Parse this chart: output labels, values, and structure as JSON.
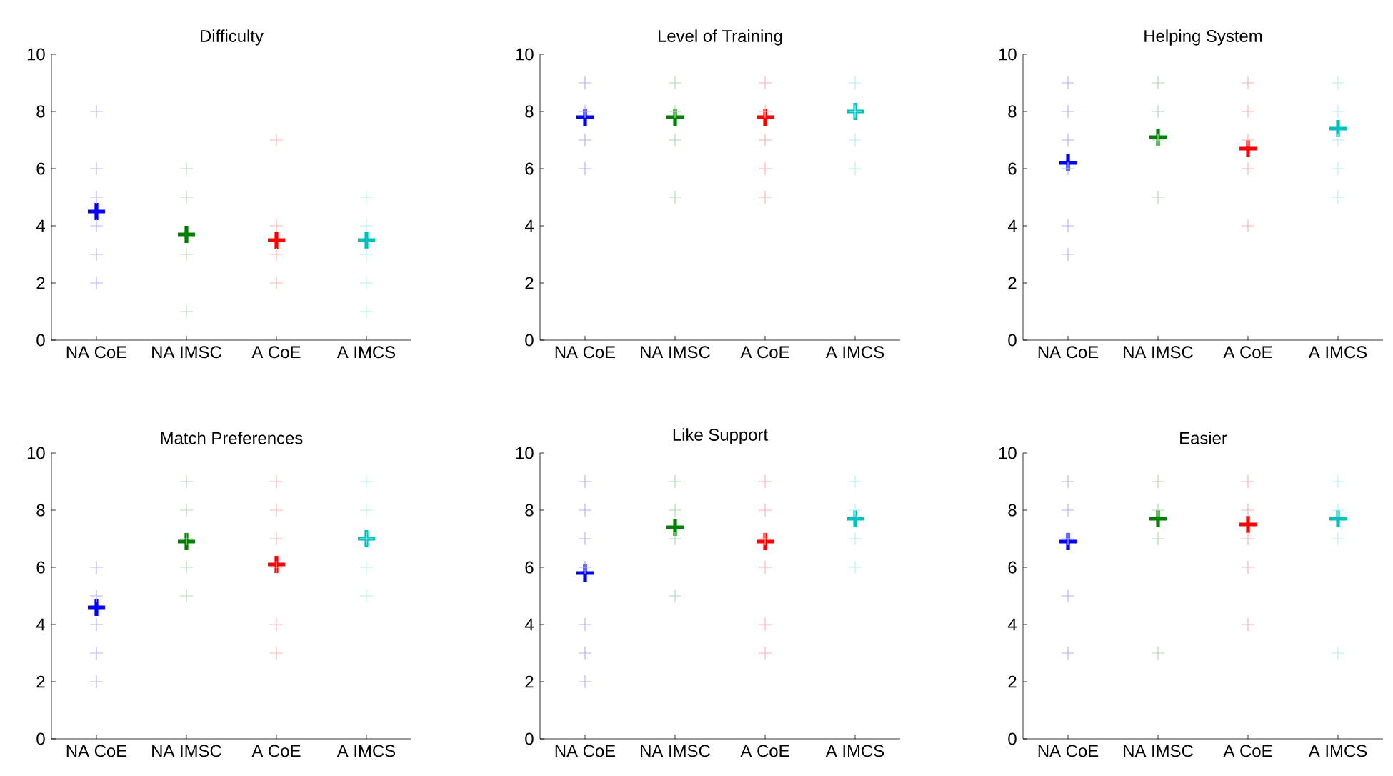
{
  "chart_data": [
    {
      "type": "scatter",
      "title": "Difficulty",
      "categories": [
        "NA CoE",
        "NA IMSC",
        "A CoE",
        "A IMCS"
      ],
      "ylim": [
        0,
        10
      ],
      "yticks": [
        0,
        2,
        4,
        6,
        8,
        10
      ],
      "marker": "cross",
      "series": [
        {
          "color": "#b3b3ff",
          "x": [
            "NA CoE",
            "NA CoE",
            "NA CoE",
            "NA CoE",
            "NA CoE",
            "NA CoE"
          ],
          "values": [
            8,
            6,
            5,
            4,
            3,
            2
          ]
        },
        {
          "color": "#b3d9b3",
          "x": [
            "NA IMSC",
            "NA IMSC",
            "NA IMSC",
            "NA IMSC"
          ],
          "values": [
            6,
            5,
            3,
            1
          ]
        },
        {
          "color": "#ffb3b3",
          "x": [
            "A CoE",
            "A CoE",
            "A CoE",
            "A CoE"
          ],
          "values": [
            7,
            4,
            3,
            2
          ]
        },
        {
          "color": "#b3f0f0",
          "x": [
            "A IMCS",
            "A IMCS",
            "A IMCS",
            "A IMCS",
            "A IMCS"
          ],
          "values": [
            5,
            4,
            3,
            2,
            1
          ]
        },
        {
          "colors": [
            "#0000ff",
            "#008000",
            "#ff0000",
            "#00bfbf"
          ],
          "values": [
            4.5,
            3.7,
            3.5,
            3.5
          ]
        }
      ]
    },
    {
      "type": "scatter",
      "title": "Level of Training",
      "categories": [
        "NA CoE",
        "NA IMSC",
        "A CoE",
        "A IMCS"
      ],
      "ylim": [
        0,
        10
      ],
      "yticks": [
        0,
        2,
        4,
        6,
        8,
        10
      ],
      "marker": "cross",
      "series": [
        {
          "color": "#b3b3ff",
          "x": [
            "NA CoE",
            "NA CoE",
            "NA CoE",
            "NA CoE"
          ],
          "values": [
            9,
            8,
            7,
            6
          ]
        },
        {
          "color": "#b3d9b3",
          "x": [
            "NA IMSC",
            "NA IMSC",
            "NA IMSC",
            "NA IMSC"
          ],
          "values": [
            9,
            8,
            7,
            5
          ]
        },
        {
          "color": "#ffb3b3",
          "x": [
            "A CoE",
            "A CoE",
            "A CoE",
            "A CoE",
            "A CoE"
          ],
          "values": [
            9,
            8,
            7,
            6,
            5
          ]
        },
        {
          "color": "#b3f0f0",
          "x": [
            "A IMCS",
            "A IMCS",
            "A IMCS",
            "A IMCS"
          ],
          "values": [
            9,
            8,
            7,
            6
          ]
        },
        {
          "colors": [
            "#0000ff",
            "#008000",
            "#ff0000",
            "#00bfbf"
          ],
          "values": [
            7.8,
            7.8,
            7.8,
            8.0
          ]
        }
      ]
    },
    {
      "type": "scatter",
      "title": "Helping System",
      "categories": [
        "NA CoE",
        "NA IMSC",
        "A CoE",
        "A IMCS"
      ],
      "ylim": [
        0,
        10
      ],
      "yticks": [
        0,
        2,
        4,
        6,
        8,
        10
      ],
      "marker": "cross",
      "series": [
        {
          "color": "#b3b3ff",
          "x": [
            "NA CoE",
            "NA CoE",
            "NA CoE",
            "NA CoE",
            "NA CoE",
            "NA CoE"
          ],
          "values": [
            9,
            8,
            7,
            6,
            4,
            3
          ]
        },
        {
          "color": "#b3d9b3",
          "x": [
            "NA IMSC",
            "NA IMSC",
            "NA IMSC",
            "NA IMSC"
          ],
          "values": [
            9,
            8,
            7,
            5
          ]
        },
        {
          "color": "#ffb3b3",
          "x": [
            "A CoE",
            "A CoE",
            "A CoE",
            "A CoE",
            "A CoE"
          ],
          "values": [
            9,
            8,
            7,
            6,
            4
          ]
        },
        {
          "color": "#b3f0f0",
          "x": [
            "A IMCS",
            "A IMCS",
            "A IMCS",
            "A IMCS",
            "A IMCS"
          ],
          "values": [
            9,
            8,
            7,
            6,
            5
          ]
        },
        {
          "colors": [
            "#0000ff",
            "#008000",
            "#ff0000",
            "#00bfbf"
          ],
          "values": [
            6.2,
            7.1,
            6.7,
            7.4
          ]
        }
      ]
    },
    {
      "type": "scatter",
      "title": "Match Preferences",
      "categories": [
        "NA CoE",
        "NA IMSC",
        "A CoE",
        "A IMCS"
      ],
      "ylim": [
        0,
        10
      ],
      "yticks": [
        0,
        2,
        4,
        6,
        8,
        10
      ],
      "marker": "cross",
      "series": [
        {
          "color": "#b3b3ff",
          "x": [
            "NA CoE",
            "NA CoE",
            "NA CoE",
            "NA CoE",
            "NA CoE"
          ],
          "values": [
            6,
            5,
            4,
            3,
            2
          ]
        },
        {
          "color": "#b3d9b3",
          "x": [
            "NA IMSC",
            "NA IMSC",
            "NA IMSC",
            "NA IMSC",
            "NA IMSC"
          ],
          "values": [
            9,
            8,
            7,
            6,
            5
          ]
        },
        {
          "color": "#ffb3b3",
          "x": [
            "A CoE",
            "A CoE",
            "A CoE",
            "A CoE",
            "A CoE",
            "A CoE"
          ],
          "values": [
            9,
            8,
            7,
            6,
            4,
            3
          ]
        },
        {
          "color": "#b3f0f0",
          "x": [
            "A IMCS",
            "A IMCS",
            "A IMCS",
            "A IMCS",
            "A IMCS"
          ],
          "values": [
            9,
            8,
            7,
            6,
            5
          ]
        },
        {
          "colors": [
            "#0000ff",
            "#008000",
            "#ff0000",
            "#00bfbf"
          ],
          "values": [
            4.6,
            6.9,
            6.1,
            7.0
          ]
        }
      ]
    },
    {
      "type": "scatter",
      "title": "Like Support",
      "categories": [
        "NA CoE",
        "NA IMSC",
        "A CoE",
        "A IMCS"
      ],
      "ylim": [
        0,
        10
      ],
      "yticks": [
        0,
        2,
        4,
        6,
        8,
        10
      ],
      "marker": "cross",
      "series": [
        {
          "color": "#b3b3ff",
          "x": [
            "NA CoE",
            "NA CoE",
            "NA CoE",
            "NA CoE",
            "NA CoE",
            "NA CoE",
            "NA CoE"
          ],
          "values": [
            9,
            8,
            7,
            6,
            4,
            3,
            2
          ]
        },
        {
          "color": "#b3d9b3",
          "x": [
            "NA IMSC",
            "NA IMSC",
            "NA IMSC",
            "NA IMSC"
          ],
          "values": [
            9,
            8,
            7,
            5
          ]
        },
        {
          "color": "#ffb3b3",
          "x": [
            "A CoE",
            "A CoE",
            "A CoE",
            "A CoE",
            "A CoE",
            "A CoE"
          ],
          "values": [
            9,
            8,
            7,
            6,
            4,
            3
          ]
        },
        {
          "color": "#b3f0f0",
          "x": [
            "A IMCS",
            "A IMCS",
            "A IMCS",
            "A IMCS"
          ],
          "values": [
            9,
            8,
            7,
            6
          ]
        },
        {
          "colors": [
            "#0000ff",
            "#008000",
            "#ff0000",
            "#00bfbf"
          ],
          "values": [
            5.8,
            7.4,
            6.9,
            7.7
          ]
        }
      ]
    },
    {
      "type": "scatter",
      "title": "Easier",
      "categories": [
        "NA CoE",
        "NA IMSC",
        "A CoE",
        "A IMCS"
      ],
      "ylim": [
        0,
        10
      ],
      "yticks": [
        0,
        2,
        4,
        6,
        8,
        10
      ],
      "marker": "cross",
      "series": [
        {
          "color": "#b3b3ff",
          "x": [
            "NA CoE",
            "NA CoE",
            "NA CoE",
            "NA CoE",
            "NA CoE"
          ],
          "values": [
            9,
            8,
            7,
            5,
            3
          ]
        },
        {
          "color": "#b3d9b3",
          "x": [
            "NA IMSC",
            "NA IMSC",
            "NA IMSC",
            "NA IMSC"
          ],
          "values": [
            9,
            8,
            7,
            3
          ]
        },
        {
          "color": "#ffb3b3",
          "x": [
            "A CoE",
            "A CoE",
            "A CoE",
            "A CoE",
            "A CoE"
          ],
          "values": [
            9,
            8,
            7,
            6,
            4
          ]
        },
        {
          "color": "#b3f0f0",
          "x": [
            "A IMCS",
            "A IMCS",
            "A IMCS",
            "A IMCS"
          ],
          "values": [
            9,
            8,
            7,
            3
          ]
        },
        {
          "colors": [
            "#0000ff",
            "#008000",
            "#ff0000",
            "#00bfbf"
          ],
          "values": [
            6.9,
            7.7,
            7.5,
            7.7
          ]
        }
      ]
    }
  ]
}
